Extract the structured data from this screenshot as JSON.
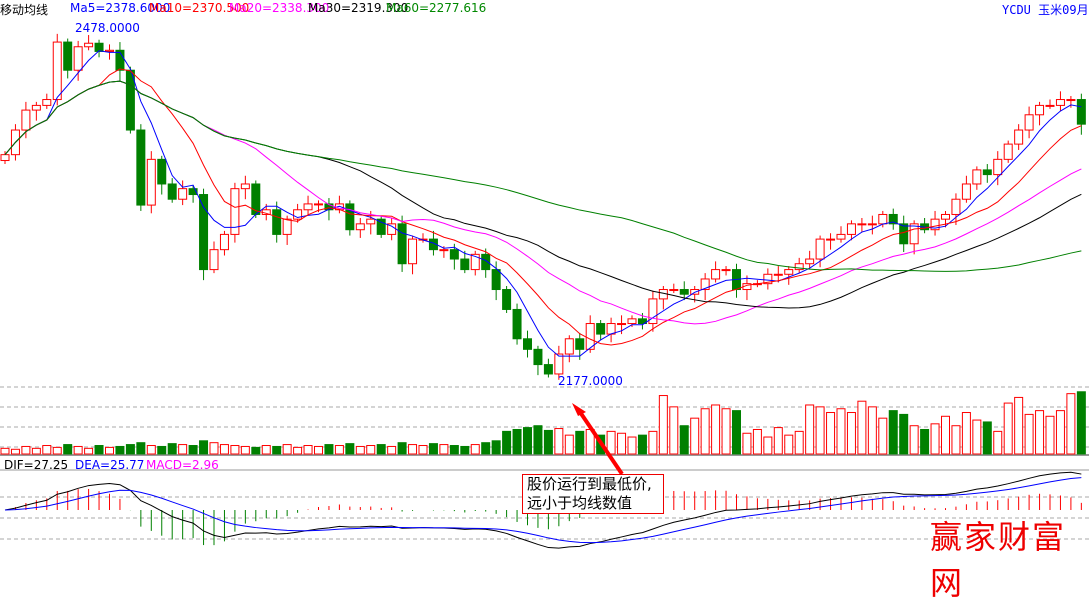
{
  "header": {
    "indicator": "移动均线",
    "ma5": "Ma5=2378.6000",
    "ma10": "Ma10=2370.500",
    "ma20": "Ma20=2338.300",
    "ma30": "Ma30=2319.300",
    "ma60": "Ma60=2277.616",
    "symbol": "YCDU  玉米09月"
  },
  "macd_header": {
    "dif": "DIF=27.25",
    "dea": "DEA=25.77",
    "macd": "MACD=2.96"
  },
  "annotations": {
    "high": "2478.0000",
    "low": "2177.0000",
    "note_line1": "股价运行到最低价,",
    "note_line2": "远小于均线数值"
  },
  "watermark": "赢家财富网",
  "colors": {
    "up": "#ff0000",
    "down": "#008000",
    "ma5": "#0000ff",
    "ma10": "#ff0000",
    "ma20": "#ff00ff",
    "ma30": "#000000",
    "ma60": "#008000"
  },
  "chart_data": {
    "type": "candlestick",
    "price_range": [
      2177,
      2478
    ],
    "closes": [
      2370,
      2391,
      2408,
      2412,
      2417,
      2466,
      2442,
      2462,
      2465,
      2458,
      2459,
      2442,
      2391,
      2327,
      2366,
      2345,
      2332,
      2341,
      2336,
      2272,
      2289,
      2302,
      2341,
      2345,
      2319,
      2323,
      2302,
      2315,
      2323,
      2328,
      2328,
      2323,
      2328,
      2306,
      2311,
      2315,
      2302,
      2311,
      2277,
      2298,
      2298,
      2289,
      2289,
      2281,
      2272,
      2285,
      2272,
      2255,
      2238,
      2213,
      2204,
      2191,
      2183,
      2200,
      2213,
      2204,
      2226,
      2217,
      2226,
      2226,
      2230,
      2226,
      2247,
      2255,
      2255,
      2251,
      2255,
      2264,
      2272,
      2272,
      2255,
      2260,
      2260,
      2268,
      2268,
      2272,
      2277,
      2281,
      2298,
      2298,
      2302,
      2311,
      2311,
      2311,
      2319,
      2311,
      2294,
      2311,
      2306,
      2315,
      2319,
      2332,
      2345,
      2357,
      2353,
      2366,
      2379,
      2391,
      2404,
      2412,
      2412,
      2417,
      2417,
      2396
    ],
    "volumes": [
      6,
      5,
      8,
      6,
      9,
      7,
      10,
      8,
      6,
      9,
      7,
      8,
      10,
      12,
      9,
      8,
      11,
      10,
      9,
      14,
      12,
      10,
      9,
      8,
      7,
      9,
      8,
      10,
      7,
      9,
      8,
      10,
      9,
      11,
      8,
      9,
      10,
      8,
      12,
      10,
      9,
      11,
      10,
      9,
      8,
      10,
      12,
      14,
      24,
      26,
      28,
      30,
      25,
      27,
      20,
      24,
      26,
      20,
      24,
      22,
      18,
      20,
      24,
      62,
      50,
      30,
      38,
      48,
      52,
      48,
      46,
      22,
      26,
      18,
      28,
      20,
      24,
      52,
      50,
      44,
      48,
      44,
      56,
      50,
      38,
      46,
      42,
      30,
      26,
      32,
      40,
      30,
      44,
      36,
      34,
      24,
      54,
      60,
      42,
      46,
      40,
      46,
      64,
      66
    ]
  }
}
